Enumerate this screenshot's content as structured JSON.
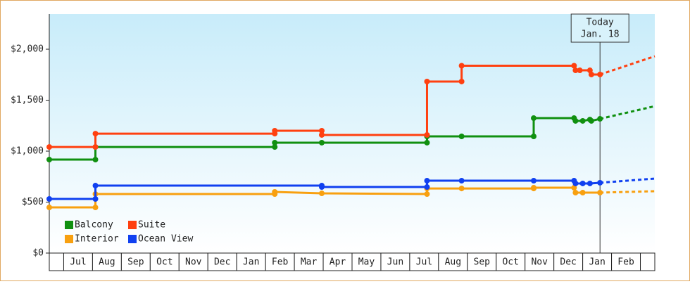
{
  "chart_data": {
    "type": "line",
    "categories": [
      "Jul",
      "Aug",
      "Sep",
      "Oct",
      "Nov",
      "Dec",
      "Jan",
      "Feb",
      "Mar",
      "Apr",
      "May",
      "Jun",
      "Jul",
      "Aug",
      "Sep",
      "Oct",
      "Nov",
      "Dec",
      "Jan",
      "Feb"
    ],
    "xlim": [
      -0.5,
      20.5
    ],
    "ylim": [
      0,
      2345
    ],
    "yticks": [
      {
        "value": 0,
        "label": "$0"
      },
      {
        "value": 500,
        "label": "$500"
      },
      {
        "value": 1000,
        "label": "$1,000"
      },
      {
        "value": 1500,
        "label": "$1,500"
      },
      {
        "value": 2000,
        "label": "$2,000"
      }
    ],
    "legend": "lower left",
    "today": {
      "x": 18.6,
      "line1": "Today",
      "line2": "Jan. 18"
    },
    "series": [
      {
        "name": "Balcony",
        "color": "#109010",
        "x": [
          -0.5,
          1.1,
          1.1,
          7.32,
          7.32,
          8.95,
          12.6,
          12.6,
          13.8,
          16.3,
          16.3,
          17.7,
          17.75,
          18.0,
          18.25,
          18.3,
          18.6
        ],
        "values": [
          917,
          917,
          1041,
          1041,
          1083,
          1083,
          1083,
          1145,
          1145,
          1145,
          1324,
          1324,
          1297,
          1297,
          1310,
          1297,
          1317
        ],
        "forecast": {
          "x": [
            18.6,
            20.5
          ],
          "values": [
            1317,
            1441
          ]
        }
      },
      {
        "name": "Suite",
        "color": "#ff4010",
        "x": [
          -0.5,
          1.1,
          1.1,
          7.32,
          7.32,
          8.95,
          8.95,
          12.6,
          12.6,
          13.8,
          13.8,
          17.7,
          17.75,
          17.9,
          18.25,
          18.3,
          18.6
        ],
        "values": [
          1041,
          1041,
          1172,
          1172,
          1200,
          1200,
          1159,
          1159,
          1683,
          1683,
          1838,
          1838,
          1793,
          1793,
          1793,
          1752,
          1752
        ],
        "forecast": {
          "x": [
            18.6,
            20.5
          ],
          "values": [
            1752,
            1931
          ]
        }
      },
      {
        "name": "Interior",
        "color": "#f8a010",
        "x": [
          -0.5,
          1.1,
          1.1,
          7.32,
          7.32,
          8.95,
          12.6,
          12.6,
          13.8,
          16.3,
          16.3,
          17.7,
          17.75,
          18.0,
          18.6
        ],
        "values": [
          448,
          448,
          579,
          579,
          600,
          586,
          579,
          634,
          634,
          634,
          641,
          641,
          593,
          593,
          593
        ],
        "forecast": {
          "x": [
            18.6,
            20.5
          ],
          "values": [
            593,
            607
          ]
        }
      },
      {
        "name": "Ocean View",
        "color": "#1040f0",
        "x": [
          -0.5,
          1.1,
          1.1,
          8.95,
          8.95,
          12.6,
          12.6,
          13.8,
          16.3,
          17.7,
          17.75,
          18.0,
          18.25,
          18.6
        ],
        "values": [
          531,
          531,
          662,
          662,
          648,
          648,
          710,
          710,
          710,
          710,
          683,
          683,
          683,
          690
        ],
        "forecast": {
          "x": [
            18.6,
            20.5
          ],
          "values": [
            690,
            731
          ]
        }
      }
    ]
  }
}
